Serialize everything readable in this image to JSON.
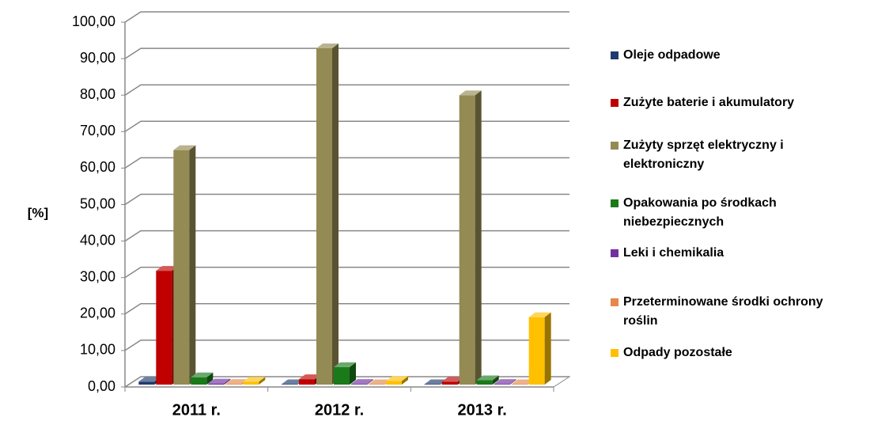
{
  "chart_data": {
    "type": "bar3d",
    "ylabel": "[%]",
    "categories": [
      "2011 r.",
      "2012 r.",
      "2013 r."
    ],
    "series": [
      {
        "name": "Oleje odpadowe",
        "color": "#1f3a6e",
        "values": [
          0.8,
          0.1,
          0.1
        ]
      },
      {
        "name": "Zużyte baterie i akumulatory",
        "color": "#c00000",
        "values": [
          31.2,
          1.5,
          0.8
        ]
      },
      {
        "name": "Zużyty sprzęt elektryczny i elektroniczny",
        "color": "#948a54",
        "values": [
          64.3,
          92.2,
          79.3
        ]
      },
      {
        "name": "Opakowania po środkach niebezpiecznych",
        "color": "#1a7a1a",
        "values": [
          2.0,
          4.8,
          1.2
        ]
      },
      {
        "name": "Leki i chemikalia",
        "color": "#7030a0",
        "values": [
          0.3,
          0.2,
          0.2
        ]
      },
      {
        "name": "Przeterminowane środki ochrony roślin",
        "color": "#e5884a",
        "values": [
          0.2,
          0.1,
          0.1
        ]
      },
      {
        "name": "Odpady pozostałe",
        "color": "#ffc000",
        "values": [
          0.8,
          1.0,
          18.5
        ]
      }
    ],
    "ylim": [
      0,
      100
    ],
    "yticks": [
      {
        "value": 0,
        "label": "0,00"
      },
      {
        "value": 10,
        "label": "10,00"
      },
      {
        "value": 20,
        "label": "20,00"
      },
      {
        "value": 30,
        "label": "30,00"
      },
      {
        "value": 40,
        "label": "40,00"
      },
      {
        "value": 50,
        "label": "50,00"
      },
      {
        "value": 60,
        "label": "60,00"
      },
      {
        "value": 70,
        "label": "70,00"
      },
      {
        "value": 80,
        "label": "80,00"
      },
      {
        "value": 90,
        "label": "90,00"
      },
      {
        "value": 100,
        "label": "100,00"
      }
    ],
    "grid": true,
    "legend": "right"
  }
}
